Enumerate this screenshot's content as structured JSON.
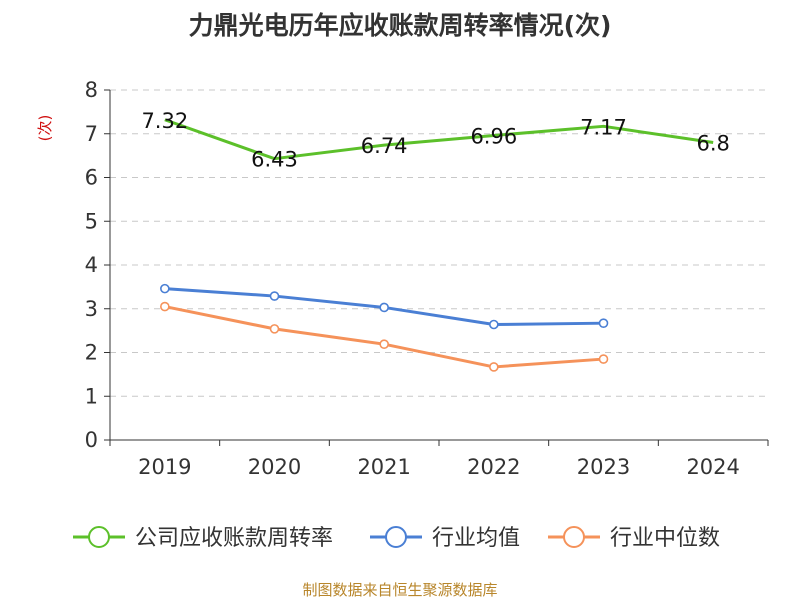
{
  "chart_data": {
    "type": "line",
    "title": "力鼎光电历年应收账款周转率情况(次)",
    "ylabel": "(次)",
    "ylim": [
      0,
      8
    ],
    "yticks": [
      0,
      1,
      2,
      3,
      4,
      5,
      6,
      7,
      8
    ],
    "grid": true,
    "legend_position": "bottom",
    "categories": [
      "2019",
      "2020",
      "2021",
      "2022",
      "2023",
      "2024"
    ],
    "series": [
      {
        "name": "公司应收账款周转率",
        "color": "#5cc02a",
        "values": [
          7.32,
          6.43,
          6.74,
          6.96,
          7.17,
          6.8
        ],
        "labels": [
          "7.32",
          "6.43",
          "6.74",
          "6.96",
          "7.17",
          "6.8"
        ]
      },
      {
        "name": "行业均值",
        "color": "#4a7fd4",
        "values": [
          3.46,
          3.29,
          3.03,
          2.64,
          2.67,
          null
        ]
      },
      {
        "name": "行业中位数",
        "color": "#f5925a",
        "values": [
          3.05,
          2.54,
          2.19,
          1.67,
          1.85,
          null
        ]
      }
    ]
  },
  "footer": {
    "source": "制图数据来自恒生聚源数据库"
  }
}
